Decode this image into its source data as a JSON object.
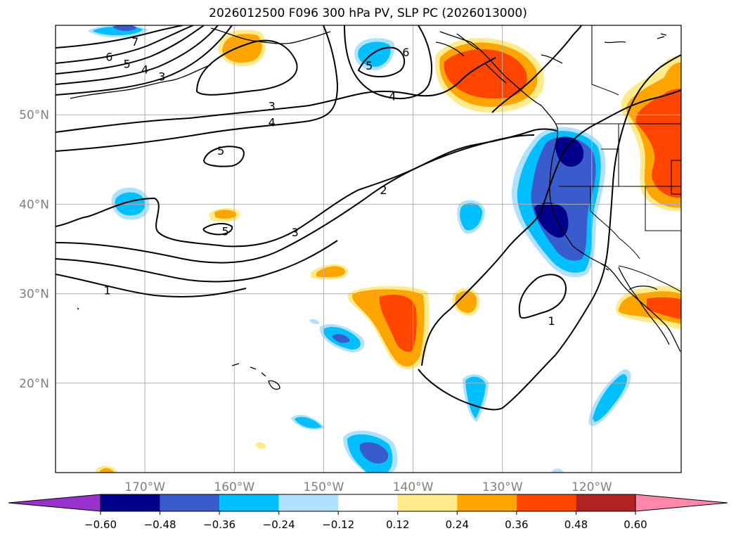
{
  "title": "2026012500 F096 300 hPa PV, SLP PC (2026013000)",
  "chart_data": {
    "type": "map",
    "projection": "equirectangular",
    "lon_range": [
      -180,
      -110
    ],
    "lat_range": [
      10,
      60
    ],
    "grid": true,
    "lon_ticks": [
      {
        "lon": -170,
        "label": "170°W"
      },
      {
        "lon": -160,
        "label": "160°W"
      },
      {
        "lon": -150,
        "label": "150°W"
      },
      {
        "lon": -140,
        "label": "140°W"
      },
      {
        "lon": -130,
        "label": "130°W"
      },
      {
        "lon": -120,
        "label": "120°W"
      }
    ],
    "lat_ticks": [
      {
        "lat": 50,
        "label": "50°N"
      },
      {
        "lat": 40,
        "label": "40°N"
      },
      {
        "lat": 30,
        "label": "30°N"
      },
      {
        "lat": 20,
        "label": "20°N"
      }
    ],
    "colorbar": {
      "levels": [
        "−0.60",
        "−0.48",
        "−0.36",
        "−0.24",
        "−0.12",
        "0.12",
        "0.24",
        "0.36",
        "0.48",
        "0.60"
      ],
      "colors": [
        "#9932cc",
        "#00008b",
        "#3a5bcc",
        "#00bfff",
        "#b0e2ff",
        "#ffffff",
        "#ffeb8c",
        "#ffa500",
        "#ff4500",
        "#b22222",
        "#ff88aa"
      ],
      "extend": "both"
    },
    "contour_labels": [
      {
        "lon": -171.1,
        "lat": 58.2,
        "text": "7"
      },
      {
        "lon": -174,
        "lat": 56.5,
        "text": "6"
      },
      {
        "lon": -172.0,
        "lat": 55.7,
        "text": "5"
      },
      {
        "lon": -170.0,
        "lat": 55.1,
        "text": "4"
      },
      {
        "lon": -168.1,
        "lat": 54.3,
        "text": "3"
      },
      {
        "lon": -155.8,
        "lat": 51.0,
        "text": "3"
      },
      {
        "lon": -155.8,
        "lat": 49.2,
        "text": "4"
      },
      {
        "lon": -161.5,
        "lat": 46.0,
        "text": "5"
      },
      {
        "lon": -161.0,
        "lat": 37.0,
        "text": "5"
      },
      {
        "lon": -153.2,
        "lat": 36.9,
        "text": "3"
      },
      {
        "lon": -143.3,
        "lat": 41.6,
        "text": "2"
      },
      {
        "lon": -174.2,
        "lat": 30.4,
        "text": "1"
      },
      {
        "lon": -124.5,
        "lat": 27.0,
        "text": "1"
      },
      {
        "lon": -142.3,
        "lat": 52.1,
        "text": "4"
      },
      {
        "lon": -144.9,
        "lat": 55.5,
        "text": "5"
      },
      {
        "lon": -140.8,
        "lat": 57.0,
        "text": "6"
      }
    ]
  }
}
